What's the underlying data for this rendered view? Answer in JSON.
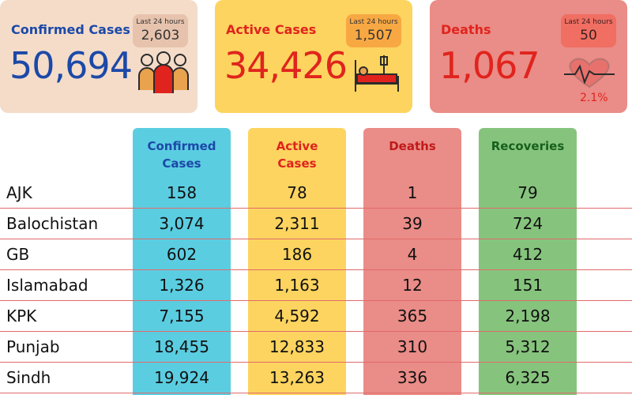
{
  "summary": {
    "confirmed": {
      "title": "Confirmed Cases",
      "value": "50,694",
      "last24_label": "Last 24 hours",
      "last24_value": "2,603",
      "icon": "people-group-icon",
      "color": "#1c49a8"
    },
    "active": {
      "title": "Active Cases",
      "value": "34,426",
      "last24_label": "Last 24 hours",
      "last24_value": "1,507",
      "icon": "hospital-bed-icon",
      "color": "#e0241d"
    },
    "deaths": {
      "title": "Deaths",
      "value": "1,067",
      "last24_label": "Last 24 hours",
      "last24_value": "50",
      "icon": "heartbeat-icon",
      "rate": "2.1%",
      "color": "#e0241d"
    }
  },
  "chart_data": {
    "type": "table",
    "columns": [
      "Confirmed Cases",
      "Active Cases",
      "Deaths",
      "Recoveries"
    ],
    "column_headers": {
      "confirmed": "Confirmed\nCases",
      "active": "Active\nCases",
      "deaths": "Deaths",
      "recoveries": "Recoveries"
    },
    "rows": [
      {
        "region": "AJK",
        "confirmed": "158",
        "active": "78",
        "deaths": "1",
        "recoveries": "79"
      },
      {
        "region": "Balochistan",
        "confirmed": "3,074",
        "active": "2,311",
        "deaths": "39",
        "recoveries": "724"
      },
      {
        "region": "GB",
        "confirmed": "602",
        "active": "186",
        "deaths": "4",
        "recoveries": "412"
      },
      {
        "region": "Islamabad",
        "confirmed": "1,326",
        "active": "1,163",
        "deaths": "12",
        "recoveries": "151"
      },
      {
        "region": "KPK",
        "confirmed": "7,155",
        "active": "4,592",
        "deaths": "365",
        "recoveries": "2,198"
      },
      {
        "region": "Punjab",
        "confirmed": "18,455",
        "active": "12,833",
        "deaths": "310",
        "recoveries": "5,312"
      },
      {
        "region": "Sindh",
        "confirmed": "19,924",
        "active": "13,263",
        "deaths": "336",
        "recoveries": "6,325"
      }
    ],
    "colors": {
      "confirmed": "#5bcde1",
      "active": "#fcd45f",
      "deaths": "#ea8c87",
      "recoveries": "#86c47d"
    }
  }
}
